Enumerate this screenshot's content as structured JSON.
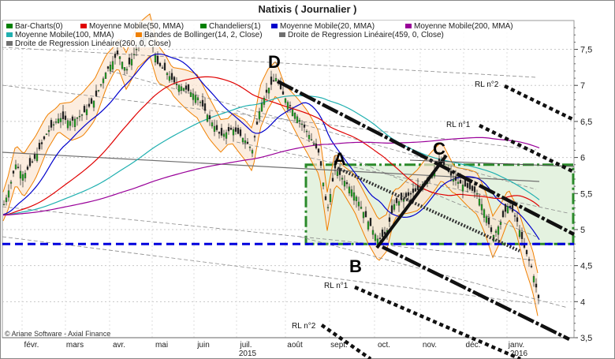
{
  "title": "Natixis  ( Journalier )",
  "copyright": "© Ariane Software - Axial Finance",
  "legend": [
    {
      "label": "Bar-Charts(0)",
      "color": "#008000"
    },
    {
      "label": "Moyenne Mobile(50, MMA)",
      "color": "#e00000"
    },
    {
      "label": "Chandeliers(1)",
      "color": "#008000"
    },
    {
      "label": "Moyenne Mobile(20, MMA)",
      "color": "#0000cc"
    },
    {
      "label": "Moyenne Mobile(200, MMA)",
      "color": "#990099"
    },
    {
      "label": "Moyenne Mobile(100, MMA)",
      "color": "#20b0b0"
    },
    {
      "label": "Bandes de Bollinger(14, 2, Close)",
      "color": "#f08000"
    },
    {
      "label": "Droite de Regression Linéaire(459, 0, Close)",
      "color": "#707070"
    },
    {
      "label": "Droite de Regression Linéaire(260, 0, Close)",
      "color": "#707070"
    }
  ],
  "annotations": {
    "D": "D",
    "A": "A",
    "B": "B",
    "C": "C",
    "rl2_top": "RL n°2",
    "rl1_top": "RL n°1",
    "rl1_bottom": "RL n°1",
    "rl2_bottom": "RL n°2"
  },
  "chart_data": {
    "type": "candlestick",
    "title": "Natixis  ( Journalier )",
    "x_months": [
      "févr.",
      "mars",
      "avr.",
      "mai",
      "juin",
      "juil.",
      "août",
      "sept.",
      "oct.",
      "nov.",
      "déc.",
      "janv."
    ],
    "x_years": [
      "2015",
      "2016"
    ],
    "y_ticks": [
      "7,5",
      "7",
      "6,5",
      "6",
      "5,5",
      "5",
      "4,5",
      "4",
      "3,5"
    ],
    "ylim": [
      3.5,
      7.9
    ],
    "close_path": [
      [
        0,
        5.2
      ],
      [
        10,
        5.5
      ],
      [
        20,
        5.9
      ],
      [
        30,
        5.75
      ],
      [
        45,
        6.0
      ],
      [
        60,
        6.35
      ],
      [
        75,
        6.55
      ],
      [
        90,
        6.5
      ],
      [
        105,
        6.6
      ],
      [
        120,
        6.8
      ],
      [
        135,
        7.2
      ],
      [
        150,
        7.45
      ],
      [
        160,
        7.2
      ],
      [
        175,
        7.55
      ],
      [
        190,
        7.7
      ],
      [
        200,
        7.3
      ],
      [
        210,
        7.2
      ],
      [
        220,
        7.05
      ],
      [
        235,
        6.95
      ],
      [
        250,
        6.85
      ],
      [
        265,
        6.55
      ],
      [
        280,
        6.3
      ],
      [
        295,
        6.4
      ],
      [
        310,
        6.25
      ],
      [
        320,
        6.1
      ],
      [
        330,
        6.7
      ],
      [
        340,
        6.95
      ],
      [
        350,
        7.1
      ],
      [
        360,
        6.85
      ],
      [
        375,
        6.6
      ],
      [
        390,
        6.35
      ],
      [
        405,
        6.05
      ],
      [
        415,
        5.25
      ],
      [
        425,
        5.85
      ],
      [
        435,
        5.7
      ],
      [
        450,
        5.5
      ],
      [
        465,
        5.15
      ],
      [
        480,
        4.85
      ],
      [
        490,
        4.95
      ],
      [
        500,
        5.35
      ],
      [
        515,
        5.45
      ],
      [
        530,
        5.55
      ],
      [
        545,
        5.75
      ],
      [
        560,
        5.95
      ],
      [
        575,
        5.7
      ],
      [
        590,
        5.6
      ],
      [
        605,
        5.5
      ],
      [
        615,
        5.25
      ],
      [
        625,
        4.9
      ],
      [
        635,
        5.1
      ],
      [
        645,
        5.35
      ],
      [
        655,
        5.15
      ],
      [
        665,
        4.75
      ],
      [
        675,
        4.45
      ],
      [
        684,
        4.0
      ]
    ],
    "trend_lines": [
      {
        "name": "RL n°2",
        "style": "dotted"
      },
      {
        "name": "RL n°1",
        "style": "dotted"
      },
      {
        "name": "RL n°1",
        "style": "dotted"
      },
      {
        "name": "RL n°2",
        "style": "dotted"
      }
    ],
    "rectangle": {
      "y_top": 5.9,
      "y_bottom": 4.8
    },
    "support_line": 4.8,
    "grid": true,
    "legend_position": "top-left"
  }
}
